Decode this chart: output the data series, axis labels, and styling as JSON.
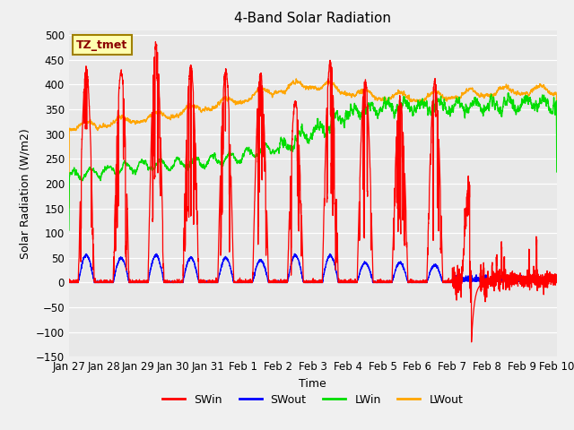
{
  "title": "4-Band Solar Radiation",
  "xlabel": "Time",
  "ylabel": "Solar Radiation (W/m2)",
  "annotation": "TZ_tmet",
  "ylim": [
    -150,
    510
  ],
  "yticks": [
    -150,
    -100,
    -50,
    0,
    50,
    100,
    150,
    200,
    250,
    300,
    350,
    400,
    450,
    500
  ],
  "colors": {
    "SWin": "#ff0000",
    "SWout": "#0000ff",
    "LWin": "#00dd00",
    "LWout": "#ffa500"
  },
  "legend_labels": [
    "SWin",
    "SWout",
    "LWin",
    "LWout"
  ],
  "background_color": "#f0f0f0",
  "plot_bg_color": "#e8e8e8",
  "grid_color": "#ffffff",
  "n_days": 14,
  "pts_per_day": 288,
  "tick_labels": [
    "Jan 27",
    "Jan 28",
    "Jan 29",
    "Jan 30",
    "Jan 31",
    "Feb 1",
    "Feb 2",
    "Feb 3",
    "Feb 4",
    "Feb 5",
    "Feb 6",
    "Feb 7",
    "Feb 8",
    "Feb 9",
    "Feb 10"
  ],
  "figsize": [
    6.4,
    4.8
  ],
  "dpi": 100
}
